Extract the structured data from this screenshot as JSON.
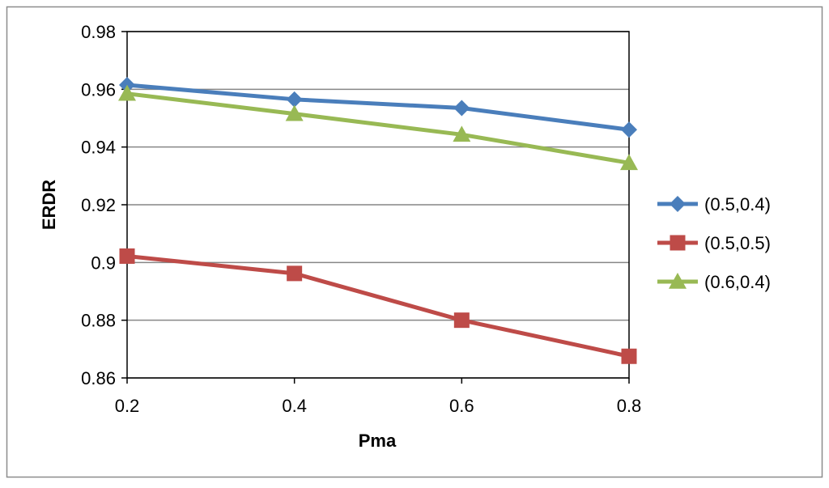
{
  "chart_data": {
    "type": "line",
    "title": "",
    "xlabel": "Pma",
    "ylabel": "ERDR",
    "x": [
      0.2,
      0.4,
      0.6,
      0.8
    ],
    "x_tick_labels": [
      "0.2",
      "0.4",
      "0.6",
      "0.8"
    ],
    "xlim": [
      0.2,
      0.8
    ],
    "ylim": [
      0.86,
      0.98
    ],
    "y_ticks": [
      0.86,
      0.88,
      0.9,
      0.92,
      0.94,
      0.96,
      0.98
    ],
    "y_tick_labels": [
      "0.86",
      "0.88",
      "0.9",
      "0.92",
      "0.94",
      "0.96",
      "0.98"
    ],
    "grid": "horizontal",
    "legend_position": "right",
    "series": [
      {
        "name": "(0.5,0.4)",
        "marker": "diamond",
        "color": "#4a7ebb",
        "values": [
          0.9615,
          0.9565,
          0.9535,
          0.946
        ]
      },
      {
        "name": "(0.5,0.5)",
        "marker": "square",
        "color": "#be4b48",
        "values": [
          0.9022,
          0.8962,
          0.88,
          0.8675
        ]
      },
      {
        "name": "(0.6,0.4)",
        "marker": "triangle",
        "color": "#98b954",
        "values": [
          0.9585,
          0.9515,
          0.9443,
          0.9345
        ]
      }
    ]
  }
}
